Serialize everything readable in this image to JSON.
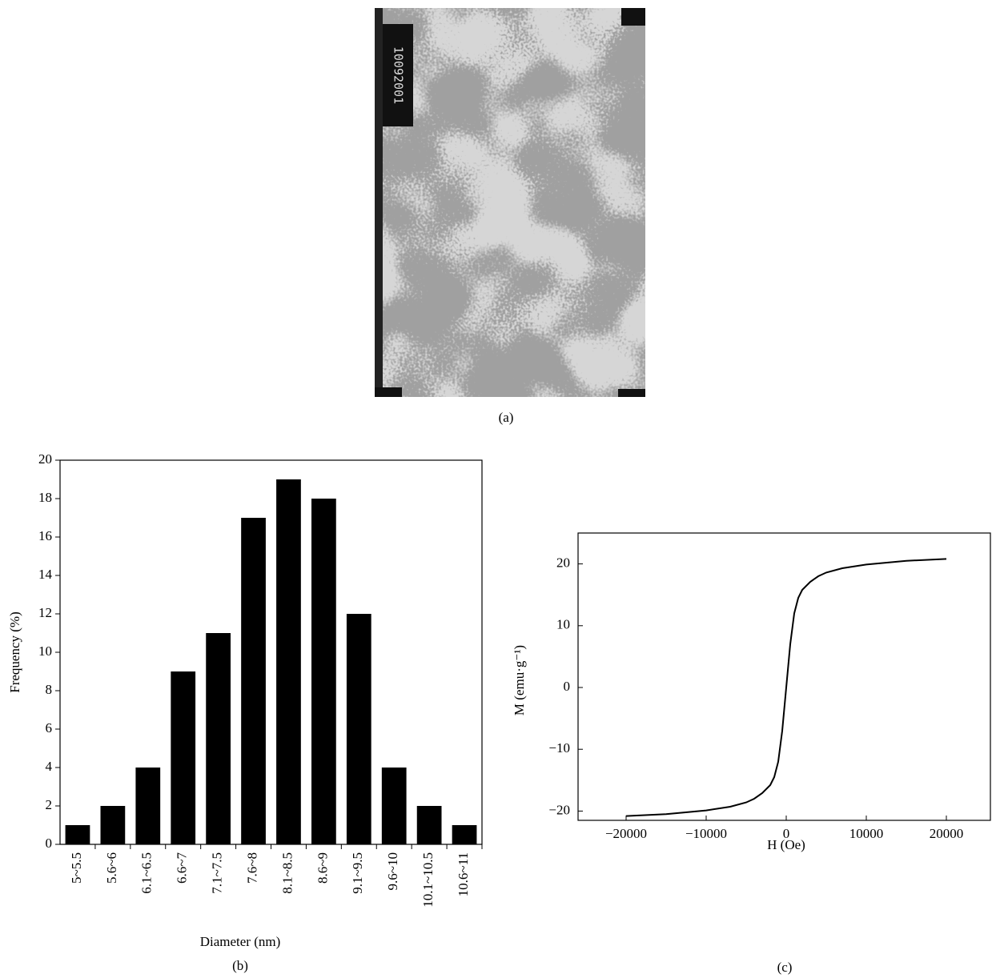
{
  "image": {
    "stamp": "10092001",
    "caption": "(a)"
  },
  "chart_data": [
    {
      "type": "bar",
      "caption": "(b)",
      "xlabel": "Diameter (nm)",
      "ylabel": "Frequency (%)",
      "categories": [
        "5~5.5",
        "5.6~6",
        "6.1~6.5",
        "6.6~7",
        "7.1~7.5",
        "7.6~8",
        "8.1~8.5",
        "8.6~9",
        "9.1~9.5",
        "9.6~10",
        "10.1~10.5",
        "10.6~11"
      ],
      "values": [
        1,
        2,
        4,
        9,
        11,
        17,
        19,
        18,
        12,
        4,
        2,
        1
      ],
      "color": "#000000",
      "ylim": [
        0,
        20
      ],
      "yticks": [
        0,
        2,
        4,
        6,
        8,
        10,
        12,
        14,
        16,
        18,
        20
      ]
    },
    {
      "type": "line",
      "caption": "(c)",
      "xlabel": "H (Oe)",
      "ylabel": "M (emu·g⁻¹)",
      "x": [
        -20000,
        -15000,
        -10000,
        -7000,
        -5000,
        -4000,
        -3000,
        -2000,
        -1500,
        -1000,
        -500,
        0,
        500,
        1000,
        1500,
        2000,
        3000,
        4000,
        5000,
        7000,
        10000,
        15000,
        20000
      ],
      "values": [
        -20.8,
        -20.5,
        -19.9,
        -19.3,
        -18.6,
        -18.0,
        -17.1,
        -15.8,
        -14.5,
        -12,
        -7,
        0,
        7,
        12,
        14.5,
        15.8,
        17.1,
        18.0,
        18.6,
        19.3,
        19.9,
        20.5,
        20.8
      ],
      "color": "#000000",
      "xlim": [
        -26000,
        25500
      ],
      "xticks": [
        {
          "value": -20000,
          "label": "−20000"
        },
        {
          "value": -10000,
          "label": "−10000"
        },
        0,
        10000,
        20000
      ],
      "ylim": [
        -21.5,
        25
      ],
      "yticks": [
        {
          "value": -20,
          "label": "−20"
        },
        {
          "value": -10,
          "label": "−10"
        },
        0,
        10,
        20
      ]
    }
  ]
}
